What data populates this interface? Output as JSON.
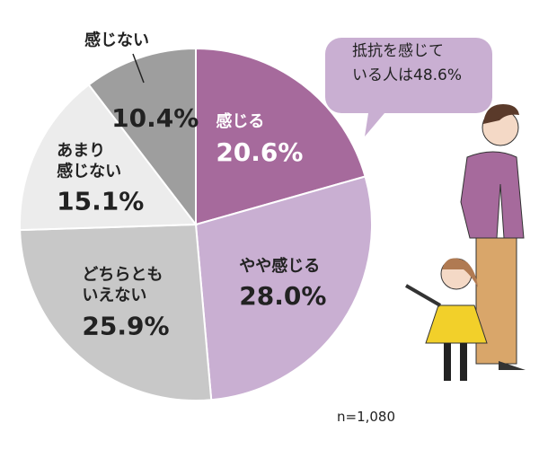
{
  "chart_data": {
    "type": "pie",
    "categories": [
      "感じる",
      "やや感じる",
      "どちらとも\nいえない",
      "あまり\n感じない",
      "感じない"
    ],
    "values": [
      20.6,
      28.0,
      25.9,
      15.1,
      10.4
    ],
    "value_labels": [
      "20.6%",
      "28.0%",
      "25.9%",
      "15.1%",
      "10.4%"
    ],
    "colors": [
      "#a66a9c",
      "#c9afd2",
      "#c8c8c8",
      "#ececec",
      "#9e9e9e"
    ],
    "label_colors": [
      "#ffffff",
      "#222222",
      "#222222",
      "#222222",
      "#222222"
    ],
    "start": "top",
    "direction": "clockwise",
    "annotations": [
      "抵抗を感じて\nいる人は48.6%",
      "n=1,080"
    ]
  }
}
